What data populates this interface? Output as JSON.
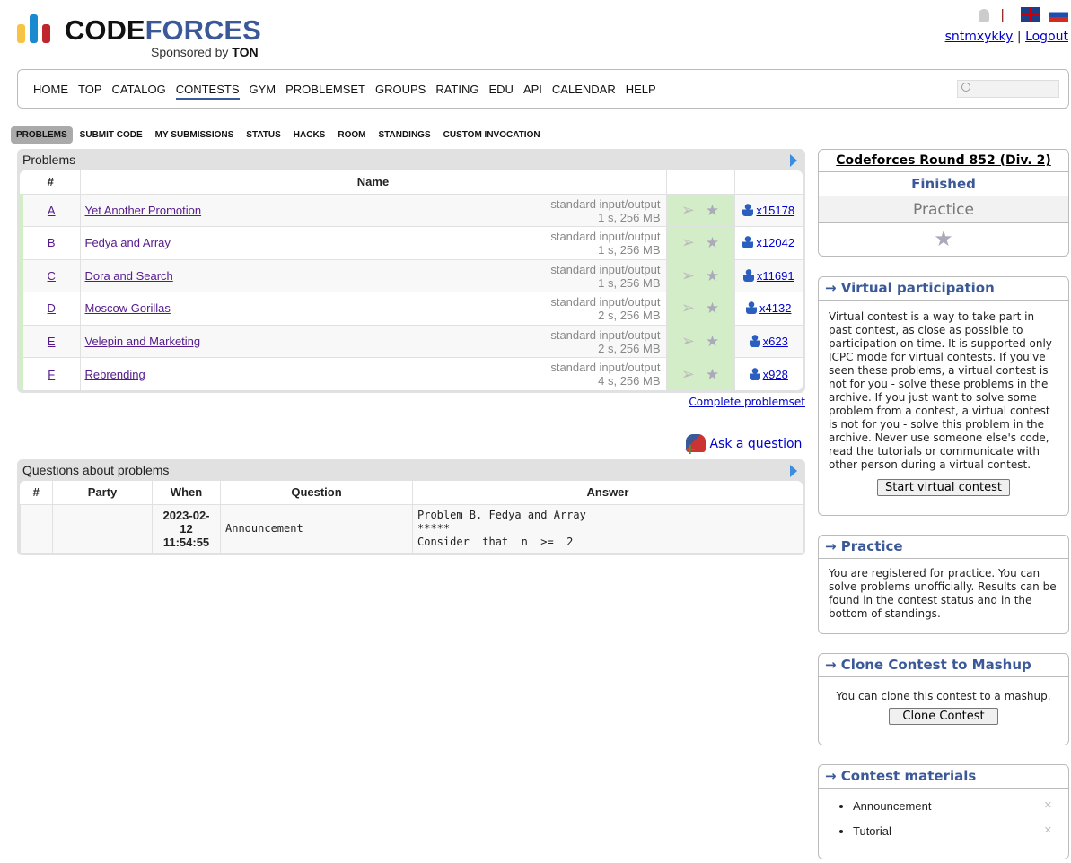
{
  "header": {
    "logo_text_1": "CODE",
    "logo_text_2": "FORCES",
    "sponsor": "Sponsored by",
    "sponsor_brand": "TON",
    "username": "sntmxykky",
    "logout": "Logout",
    "separator": "|"
  },
  "nav": {
    "items": [
      "HOME",
      "TOP",
      "CATALOG",
      "CONTESTS",
      "GYM",
      "PROBLEMSET",
      "GROUPS",
      "RATING",
      "EDU",
      "API",
      "CALENDAR",
      "HELP"
    ],
    "active": "CONTESTS",
    "search_placeholder": ""
  },
  "subtabs": {
    "items": [
      "PROBLEMS",
      "SUBMIT CODE",
      "MY SUBMISSIONS",
      "STATUS",
      "HACKS",
      "ROOM",
      "STANDINGS",
      "CUSTOM INVOCATION"
    ],
    "active": "PROBLEMS"
  },
  "problems": {
    "title": "Problems",
    "col_id": "#",
    "col_name": "Name",
    "rows": [
      {
        "id": "A",
        "name": "Yet Another Promotion",
        "io": "standard input/output",
        "limits": "1 s, 256 MB",
        "solved": "x15178"
      },
      {
        "id": "B",
        "name": "Fedya and Array",
        "io": "standard input/output",
        "limits": "1 s, 256 MB",
        "solved": "x12042"
      },
      {
        "id": "C",
        "name": "Dora and Search",
        "io": "standard input/output",
        "limits": "1 s, 256 MB",
        "solved": "x11691"
      },
      {
        "id": "D",
        "name": "Moscow Gorillas",
        "io": "standard input/output",
        "limits": "2 s, 256 MB",
        "solved": "x4132"
      },
      {
        "id": "E",
        "name": "Velepin and Marketing",
        "io": "standard input/output",
        "limits": "2 s, 256 MB",
        "solved": "x623"
      },
      {
        "id": "F",
        "name": "Rebrending",
        "io": "standard input/output",
        "limits": "4 s, 256 MB",
        "solved": "x928"
      }
    ],
    "complete_link": "Complete problemset",
    "ask_link": "Ask a question"
  },
  "questions": {
    "title": "Questions about problems",
    "cols": [
      "#",
      "Party",
      "When",
      "Question",
      "Answer"
    ],
    "rows": [
      {
        "num": "",
        "party": "",
        "when_date": "2023-02-",
        "when_day": "12",
        "when_time": "11:54:55",
        "question": "Announcement",
        "answer_1": "Problem B. Fedya and Array",
        "answer_2": "*****",
        "answer_3": "Consider  that  n  >=  2"
      }
    ]
  },
  "sidebar": {
    "contest": {
      "name": "Codeforces Round 852 (Div. 2)",
      "phase": "Finished",
      "mode": "Practice"
    },
    "virtual": {
      "title": "→ Virtual participation",
      "text": "Virtual contest is a way to take part in past contest, as close as possible to participation on time. It is supported only ICPC mode for virtual contests. If you've seen these problems, a virtual contest is not for you - solve these problems in the archive. If you just want to solve some problem from a contest, a virtual contest is not for you - solve this problem in the archive. Never use someone else's code, read the tutorials or communicate with other person during a virtual contest.",
      "button": "Start virtual contest"
    },
    "practice": {
      "title": "→ Practice",
      "text": "You are registered for practice. You can solve problems unofficially. Results can be found in the contest status and in the bottom of standings."
    },
    "clone": {
      "title": "→ Clone Contest to Mashup",
      "text": "You can clone this contest to a mashup.",
      "button": "Clone Contest"
    },
    "materials": {
      "title": "→ Contest materials",
      "items": [
        "Announcement",
        "Tutorial"
      ]
    }
  },
  "colors": {
    "brand": "#3b5998",
    "accepted_bg": "#d4edc9",
    "link": "#0000cc",
    "visited": "#551a8b"
  }
}
